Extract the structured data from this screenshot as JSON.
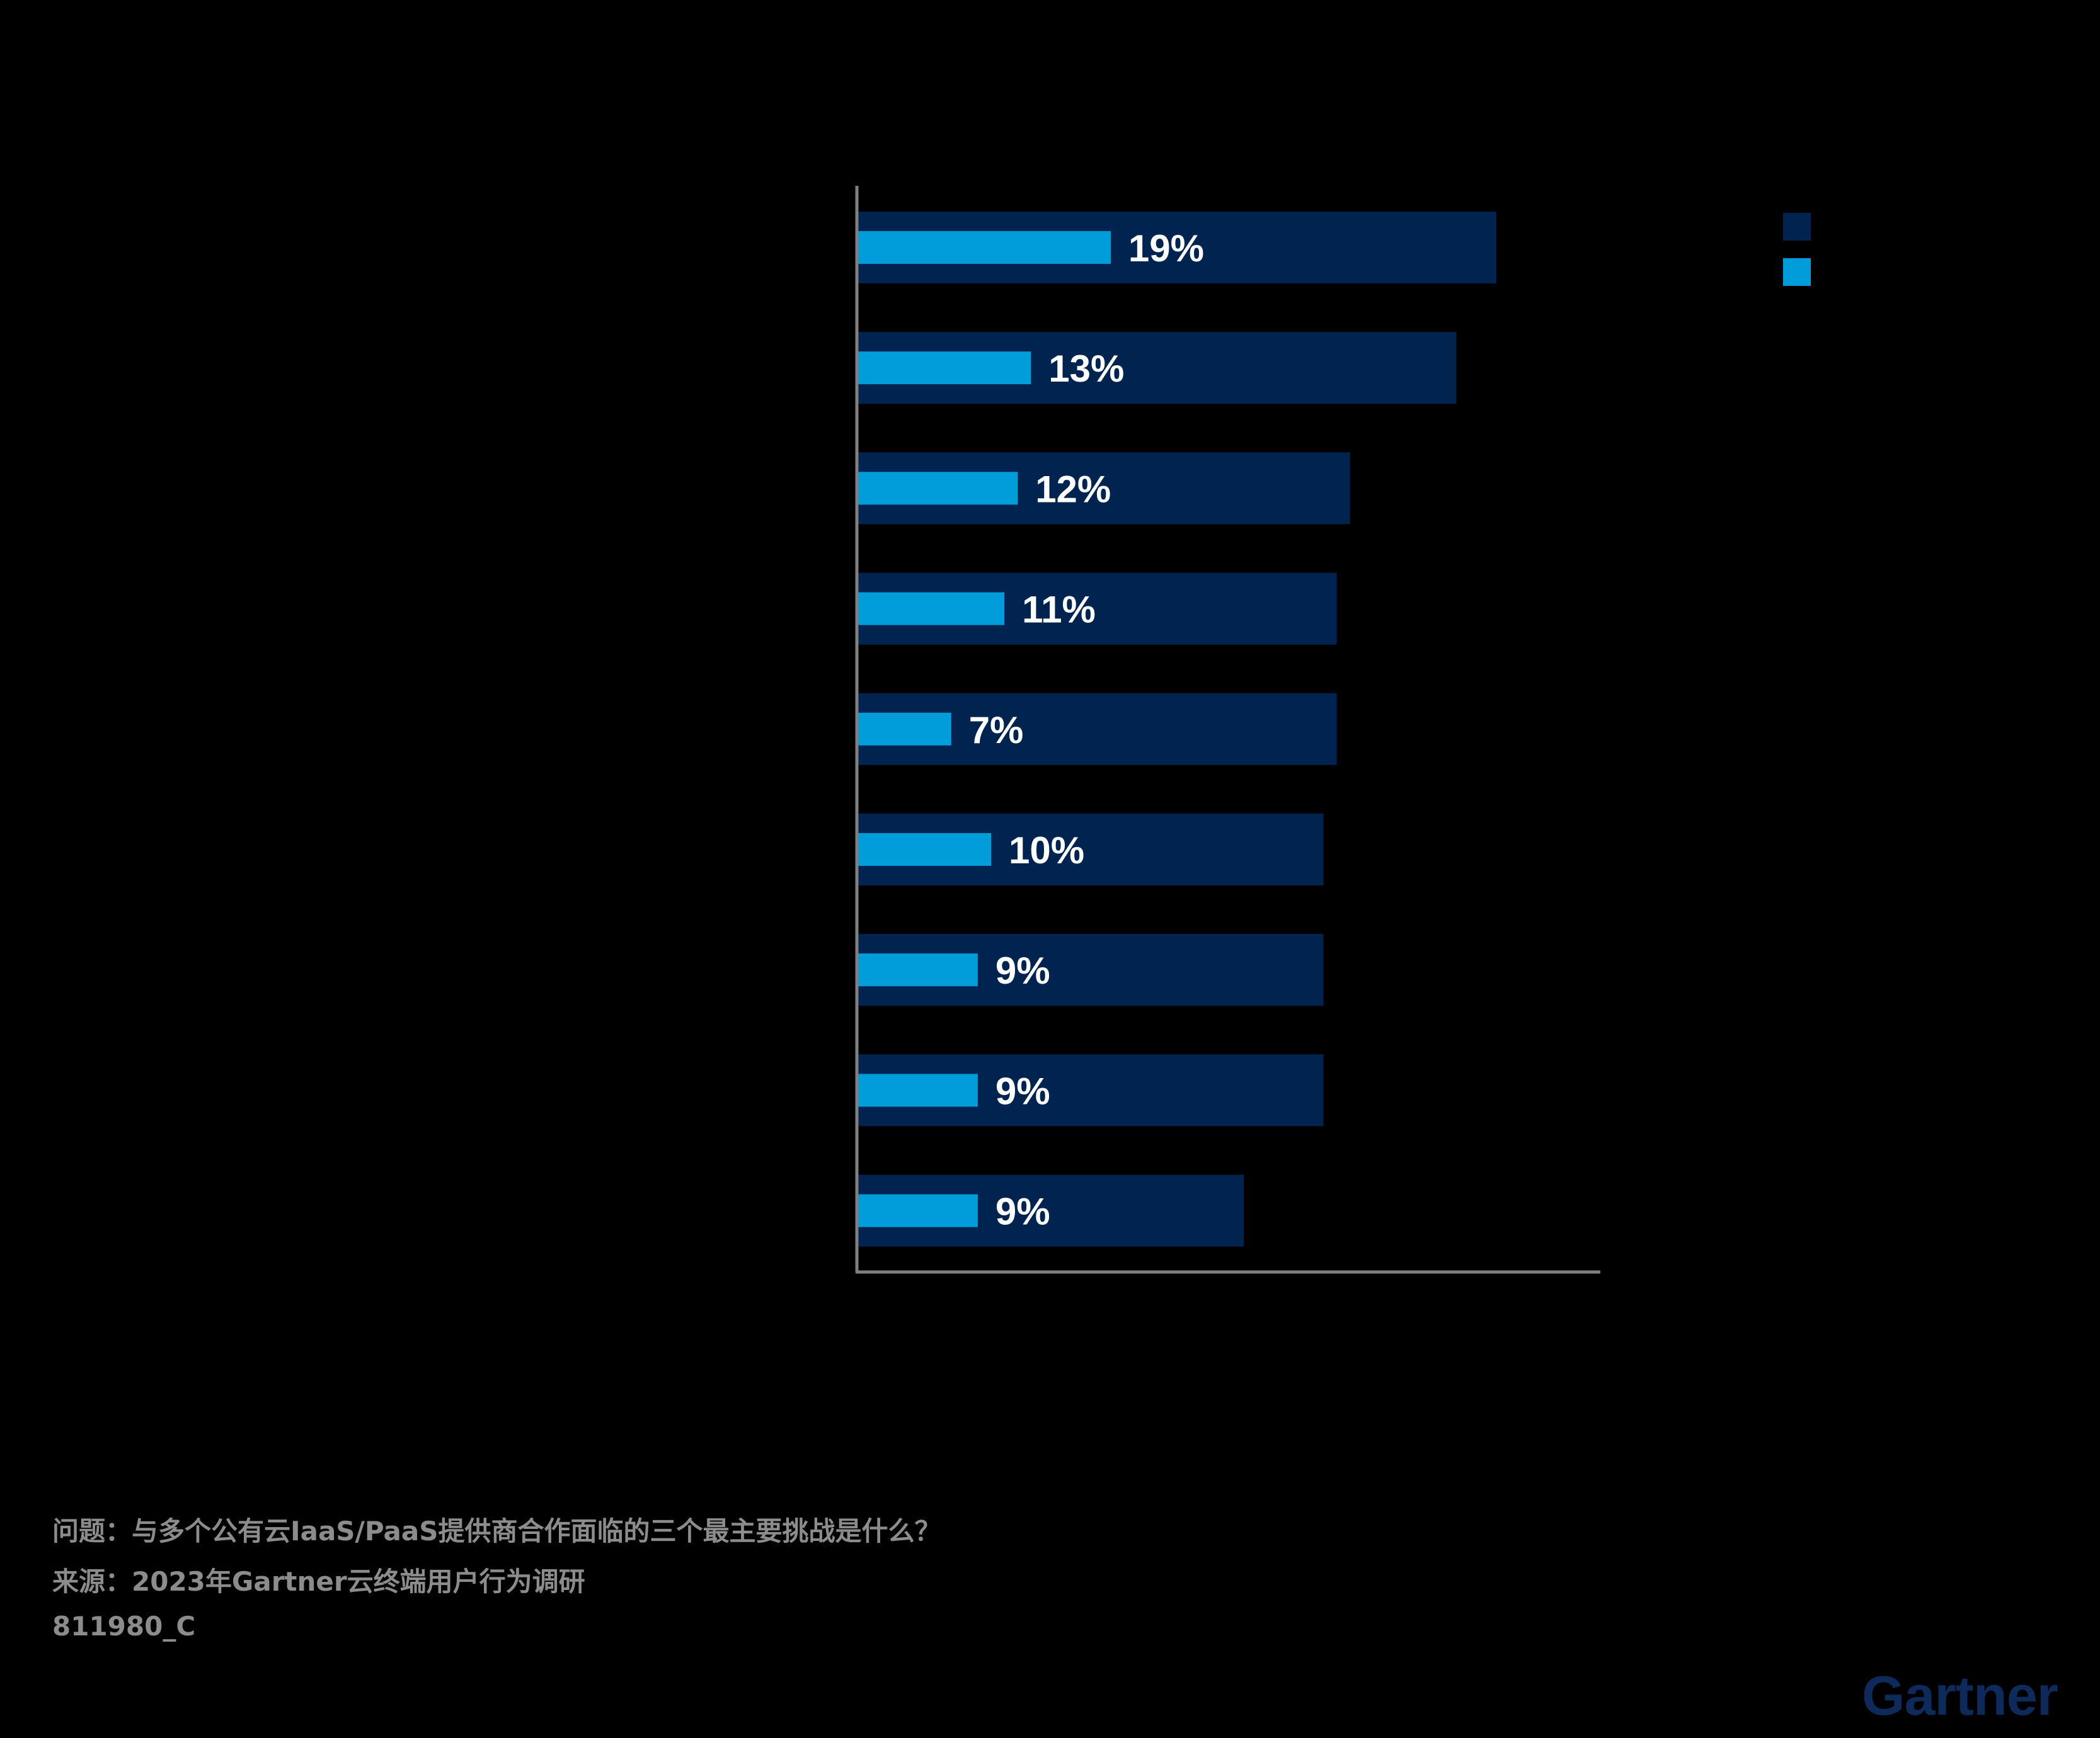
{
  "chart_data": {
    "type": "bar",
    "orientation": "horizontal",
    "series": [
      {
        "name": "",
        "color": "#00244f",
        "values": [
          48,
          45,
          37,
          36,
          36,
          35,
          35,
          35,
          29
        ]
      },
      {
        "name": "",
        "color": "#009ddb",
        "values": [
          19,
          13,
          12,
          11,
          7,
          10,
          9,
          9,
          9
        ]
      }
    ],
    "data_labels": [
      "19%",
      "13%",
      "12%",
      "11%",
      "7%",
      "10%",
      "9%",
      "9%",
      "9%"
    ],
    "xlim": [
      0,
      50
    ],
    "legend_position": "top-right",
    "grid": false
  },
  "footer": {
    "question": "问题：与多个公有云IaaS/PaaS提供商合作面临的三个最主要挑战是什么？",
    "source": "来源：2023年Gartner云终端用户行为调研",
    "id": "811980_C"
  },
  "logo": {
    "text": "Gartner"
  },
  "colors": {
    "background": "#000000",
    "axis": "#7f7f7f",
    "label": "#ffffff",
    "footer_text": "#8c8c8c",
    "logo": "#0e2a5a"
  }
}
